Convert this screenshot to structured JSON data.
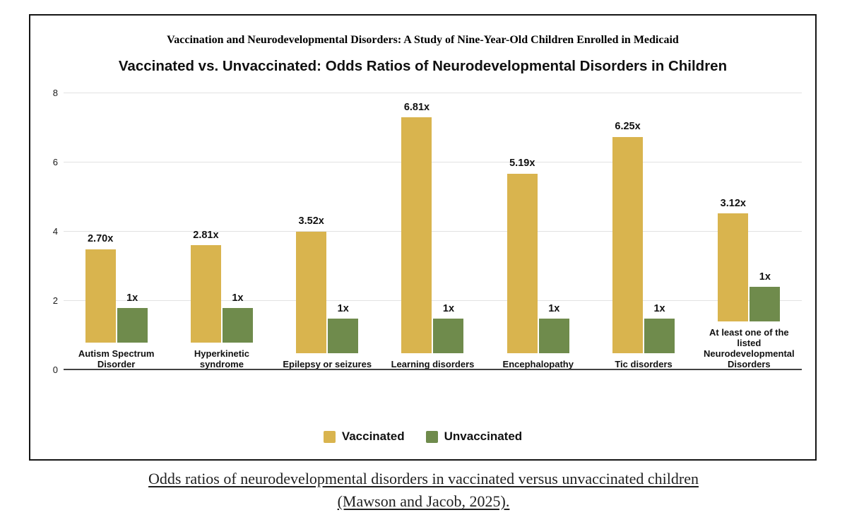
{
  "figure": {
    "pretitle": "Vaccination and Neurodevelopmental Disorders: A Study of Nine-Year-Old Children Enrolled in Medicaid",
    "title": "Vaccinated vs. Unvaccinated: Odds Ratios of Neurodevelopmental Disorders in Children"
  },
  "chart_data": {
    "type": "bar",
    "title": "Vaccinated vs. Unvaccinated: Odds Ratios of Neurodevelopmental Disorders in Children",
    "categories": [
      "Autism Spectrum\nDisorder",
      "Hyperkinetic\nsyndrome",
      "Epilepsy or seizures",
      "Learning disorders",
      "Encephalopathy",
      "Tic disorders",
      "At least one of the\nlisted\nNeurodevelopmental\nDisorders"
    ],
    "series": [
      {
        "name": "Vaccinated",
        "color": "#d9b44e",
        "values": [
          2.7,
          2.81,
          3.52,
          6.81,
          5.19,
          6.25,
          3.12
        ],
        "value_labels": [
          "2.70x",
          "2.81x",
          "3.52x",
          "6.81x",
          "5.19x",
          "6.25x",
          "3.12x"
        ]
      },
      {
        "name": "Unvaccinated",
        "color": "#6f8b4c",
        "values": [
          1,
          1,
          1,
          1,
          1,
          1,
          1
        ],
        "value_labels": [
          "1x",
          "1x",
          "1x",
          "1x",
          "1x",
          "1x",
          "1x"
        ]
      }
    ],
    "ylim": [
      0,
      8
    ],
    "yticks": [
      0,
      2,
      4,
      6,
      8
    ],
    "grid": true,
    "legend_position": "bottom",
    "colors": {
      "grid": "#e2e2e2",
      "baseline": "#424242"
    }
  },
  "caption": "Odds ratios of neurodevelopmental disorders in vaccinated versus unvaccinated children (Mawson and Jacob, 2025)."
}
